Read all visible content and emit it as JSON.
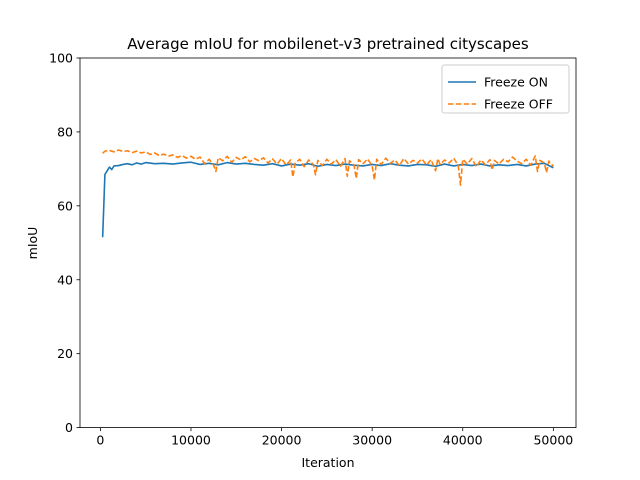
{
  "chart_data": {
    "type": "line",
    "title": "Average mIoU for mobilenet-v3 pretrained cityscapes",
    "xlabel": "Iteration",
    "ylabel": "mIoU",
    "xlim": [
      -2250,
      52500
    ],
    "ylim": [
      0,
      100
    ],
    "xticks": [
      0,
      10000,
      20000,
      30000,
      40000,
      50000
    ],
    "yticks": [
      0,
      20,
      40,
      60,
      80,
      100
    ],
    "grid": false,
    "legend_position": "top-right",
    "series": [
      {
        "name": "Freeze ON",
        "color": "#1f77b4",
        "style": "solid",
        "x": [
          250,
          500,
          1000,
          1250,
          1500,
          2000,
          2500,
          3000,
          3500,
          4000,
          4500,
          5000,
          6000,
          7000,
          8000,
          9000,
          10000,
          11000,
          12000,
          13000,
          14000,
          15000,
          16000,
          17000,
          18000,
          19000,
          20000,
          21000,
          22000,
          23000,
          24000,
          25000,
          26000,
          27000,
          28000,
          29000,
          30000,
          31000,
          32000,
          33000,
          34000,
          35000,
          36000,
          37000,
          38000,
          39000,
          40000,
          41000,
          42000,
          43000,
          44000,
          45000,
          46000,
          47000,
          48000,
          49000,
          50000
        ],
        "y": [
          51.5,
          68.5,
          70.5,
          69.8,
          70.8,
          70.9,
          71.2,
          71.4,
          71.1,
          71.6,
          71.3,
          71.7,
          71.4,
          71.5,
          71.3,
          71.6,
          71.8,
          71.2,
          71.5,
          71.1,
          71.7,
          71.3,
          71.5,
          71.2,
          71.0,
          71.4,
          70.8,
          71.3,
          71.0,
          71.4,
          70.7,
          71.2,
          70.9,
          71.3,
          71.0,
          70.8,
          71.2,
          70.9,
          71.4,
          71.0,
          70.8,
          71.2,
          71.1,
          70.7,
          71.3,
          70.8,
          71.2,
          70.9,
          71.3,
          70.8,
          71.1,
          70.9,
          71.2,
          70.8,
          71.3,
          71.5,
          70.3
        ]
      },
      {
        "name": "Freeze OFF",
        "color": "#ff7f0e",
        "style": "dashed",
        "x": [
          250,
          500,
          1000,
          1500,
          2000,
          2500,
          3000,
          3500,
          4000,
          4500,
          5000,
          5500,
          6000,
          6500,
          7000,
          7500,
          8000,
          8500,
          9000,
          9500,
          10000,
          10500,
          11000,
          11500,
          12000,
          12500,
          12750,
          13000,
          13500,
          14000,
          14500,
          15000,
          15500,
          16000,
          16500,
          17000,
          17500,
          18000,
          18500,
          19000,
          19500,
          20000,
          20500,
          21000,
          21250,
          21500,
          22000,
          22500,
          23000,
          23500,
          23750,
          24000,
          24500,
          25000,
          25500,
          26000,
          26500,
          27000,
          27250,
          27500,
          28000,
          28250,
          28500,
          29000,
          29500,
          30000,
          30250,
          30500,
          31000,
          31500,
          32000,
          32500,
          33000,
          33500,
          34000,
          34500,
          35000,
          35500,
          36000,
          36500,
          37000,
          37250,
          37500,
          38000,
          38500,
          39000,
          39500,
          39750,
          40000,
          40500,
          41000,
          41500,
          42000,
          42500,
          43000,
          43250,
          43500,
          44000,
          44500,
          45000,
          45500,
          46000,
          46500,
          47000,
          47500,
          48000,
          48250,
          48500,
          49000,
          49250,
          49500,
          50000
        ],
        "y": [
          74.2,
          74.8,
          75.0,
          74.6,
          75.1,
          74.7,
          74.9,
          74.4,
          74.8,
          74.3,
          74.6,
          73.9,
          74.3,
          73.6,
          74.0,
          73.4,
          73.8,
          73.1,
          73.6,
          72.9,
          73.4,
          72.6,
          73.2,
          71.4,
          72.6,
          71.0,
          69.3,
          73.0,
          72.2,
          73.4,
          71.8,
          73.1,
          72.4,
          73.3,
          71.9,
          72.8,
          72.2,
          73.0,
          71.6,
          72.7,
          71.3,
          72.8,
          71.0,
          72.4,
          67.8,
          71.5,
          72.6,
          70.6,
          72.4,
          71.2,
          68.4,
          72.3,
          70.9,
          72.6,
          71.3,
          72.5,
          70.7,
          72.8,
          68.0,
          72.2,
          71.0,
          67.4,
          72.5,
          71.4,
          72.7,
          70.8,
          67.0,
          72.6,
          71.2,
          72.9,
          71.5,
          72.4,
          70.9,
          72.8,
          71.3,
          72.3,
          71.6,
          72.7,
          71.0,
          72.5,
          69.5,
          72.8,
          71.2,
          72.4,
          71.6,
          72.9,
          70.9,
          65.6,
          72.6,
          71.3,
          72.8,
          70.6,
          72.4,
          71.1,
          72.5,
          69.7,
          72.3,
          71.3,
          72.6,
          71.9,
          73.2,
          72.1,
          71.4,
          72.6,
          71.0,
          73.5,
          69.3,
          72.3,
          71.6,
          69.0,
          72.1,
          70.7
        ]
      }
    ]
  }
}
